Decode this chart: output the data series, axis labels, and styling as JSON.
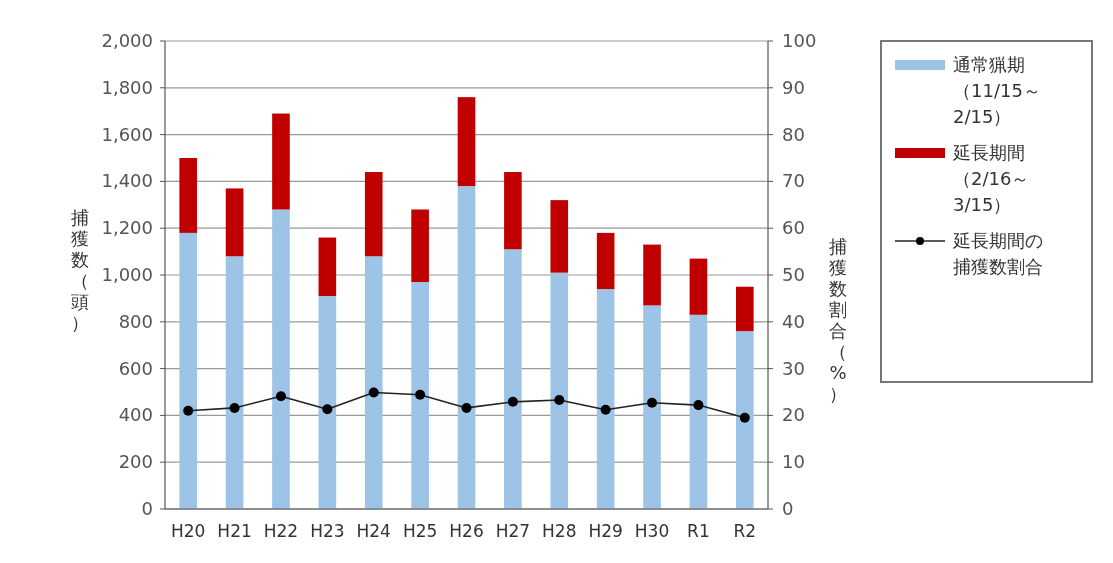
{
  "chart_data": {
    "type": "bar",
    "stacked": true,
    "ylabel": "捕獲数（頭）",
    "y2label": "捕獲数割合（%）",
    "categories": [
      "H20",
      "H21",
      "H22",
      "H23",
      "H24",
      "H25",
      "H26",
      "H27",
      "H28",
      "H29",
      "H30",
      "R1",
      "R2"
    ],
    "series": [
      {
        "name": "通常猟期（11/15～2/15）",
        "color": "#9dc3e6",
        "values": [
          1180,
          1080,
          1280,
          910,
          1080,
          970,
          1380,
          1110,
          1010,
          940,
          870,
          830,
          760
        ]
      },
      {
        "name": "延長期間（2/16～3/15）",
        "color": "#c00000",
        "values": [
          320,
          290,
          410,
          250,
          360,
          310,
          380,
          330,
          310,
          240,
          260,
          240,
          190
        ]
      },
      {
        "name": "延長期間の捕獲数割合",
        "color": "#222222",
        "type": "line",
        "axis": "y2",
        "marker": "circle",
        "values": [
          21.0,
          21.6,
          24.1,
          21.3,
          24.9,
          24.4,
          21.6,
          22.9,
          23.3,
          21.2,
          22.7,
          22.2,
          19.5
        ]
      }
    ],
    "ylim": [
      0,
      2000
    ],
    "yticks": [
      0,
      200,
      400,
      600,
      800,
      {
        "value": 1000,
        "label": "1,000"
      },
      {
        "value": 1200,
        "label": "1,200"
      },
      {
        "value": 1400,
        "label": "1,400"
      },
      {
        "value": 1600,
        "label": "1,600"
      },
      {
        "value": 1800,
        "label": "1,800"
      },
      {
        "value": 2000,
        "label": "2,000"
      }
    ],
    "y2lim": [
      0,
      100
    ],
    "y2ticks": [
      0,
      10,
      20,
      30,
      40,
      50,
      60,
      70,
      80,
      90,
      100
    ],
    "grid": "y",
    "legend": "right"
  }
}
